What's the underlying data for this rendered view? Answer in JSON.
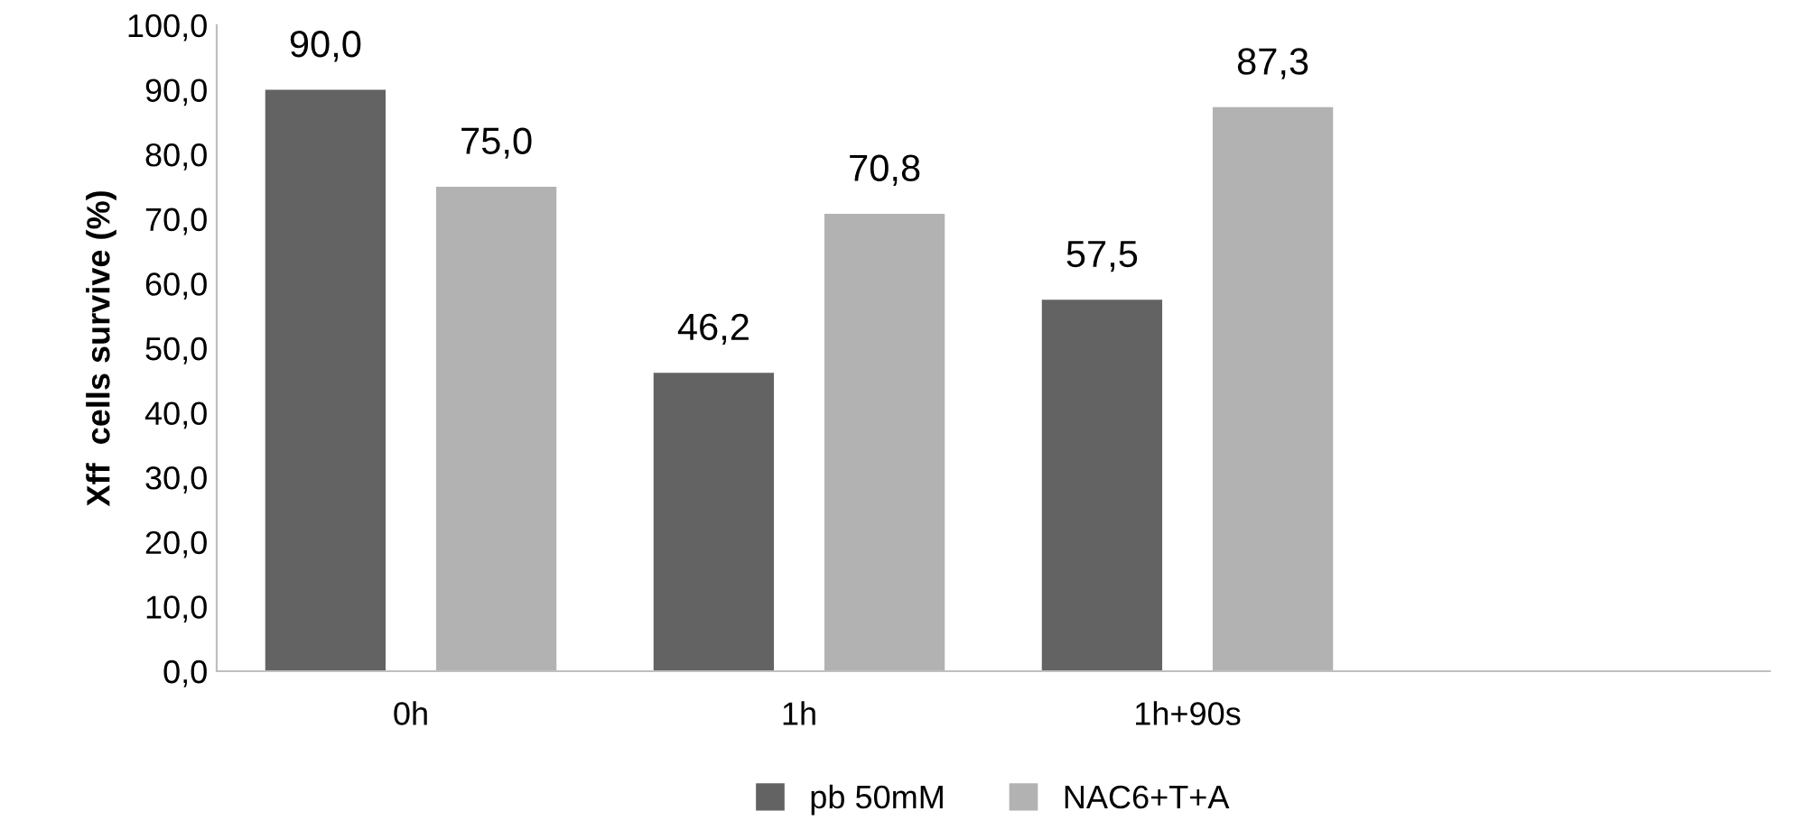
{
  "chart_data": {
    "type": "bar",
    "ylabel": "Xff  cells survive (%)",
    "categories": [
      "0h",
      "1h",
      "1h+90s",
      null
    ],
    "series": [
      {
        "name": "pb 50mM",
        "color": "#636363",
        "values": [
          90.0,
          46.2,
          57.5,
          null
        ],
        "value_labels": [
          "90,0",
          "46,2",
          "57,5",
          null
        ]
      },
      {
        "name": "NAC6+T+A",
        "color": "#b2b2b2",
        "values": [
          75.0,
          70.8,
          87.3,
          null
        ],
        "value_labels": [
          "75,0",
          "70,8",
          "87,3",
          null
        ]
      }
    ],
    "ylim": [
      0,
      100
    ],
    "yticks": [
      {
        "value": 0,
        "label": "0,0"
      },
      {
        "value": 10,
        "label": "10,0"
      },
      {
        "value": 20,
        "label": "20,0"
      },
      {
        "value": 30,
        "label": "30,0"
      },
      {
        "value": 40,
        "label": "40,0"
      },
      {
        "value": 50,
        "label": "50,0"
      },
      {
        "value": 60,
        "label": "60,0"
      },
      {
        "value": 70,
        "label": "70,0"
      },
      {
        "value": 80,
        "label": "80,0"
      },
      {
        "value": 90,
        "label": "90,0"
      },
      {
        "value": 100,
        "label": "100,0"
      }
    ],
    "grid": false,
    "legend": "bottom"
  }
}
